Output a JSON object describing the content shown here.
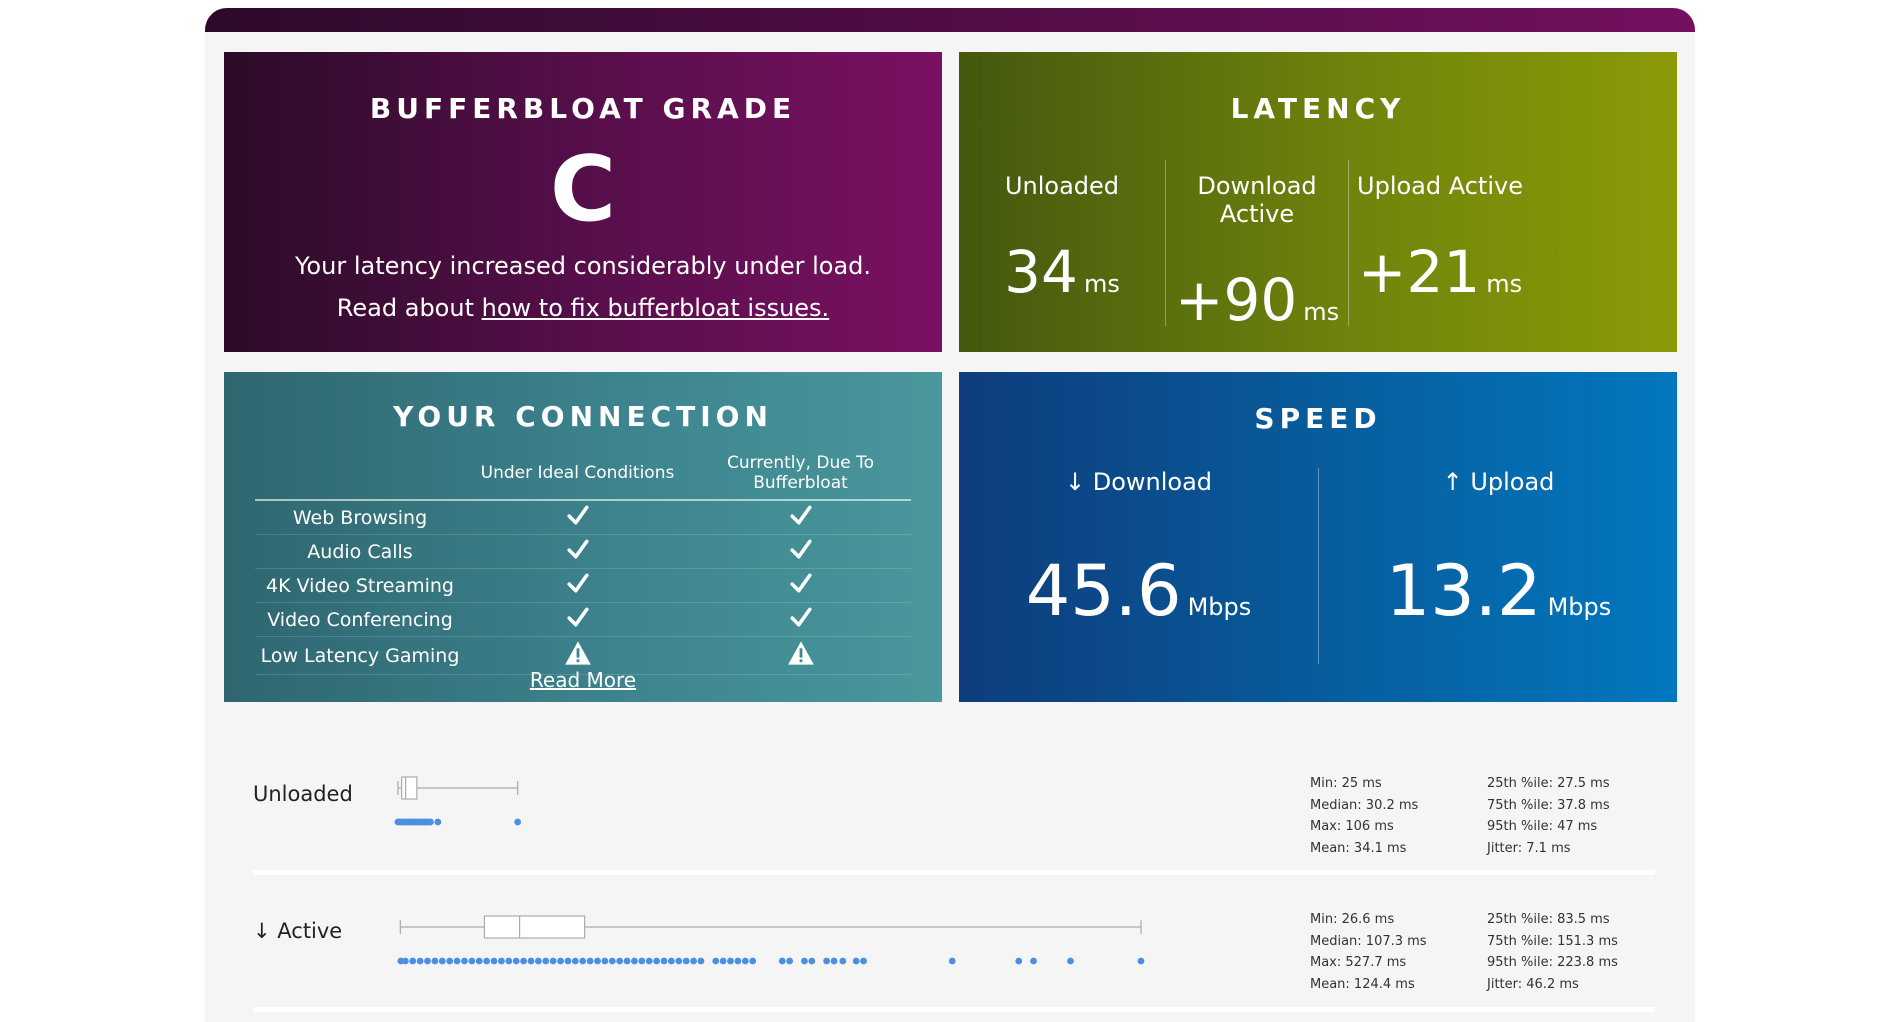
{
  "grade": {
    "title": "BUFFERBLOAT GRADE",
    "letter": "C",
    "message": "Your latency increased considerably under load.",
    "read_prefix": "Read about",
    "read_link": "how to fix bufferbloat issues."
  },
  "latency": {
    "title": "LATENCY",
    "columns": [
      {
        "label": "Unloaded",
        "value": "34",
        "unit": "ms"
      },
      {
        "label": "Download Active",
        "value": "+90",
        "unit": "ms"
      },
      {
        "label": "Upload Active",
        "value": "+21",
        "unit": "ms"
      }
    ]
  },
  "connection": {
    "title": "YOUR CONNECTION",
    "col_ideal": "Under Ideal Conditions",
    "col_current": "Currently, Due To Bufferbloat",
    "rows": [
      {
        "label": "Web Browsing",
        "ideal": "check-icon",
        "current": "check-icon"
      },
      {
        "label": "Audio Calls",
        "ideal": "check-icon",
        "current": "check-icon"
      },
      {
        "label": "4K Video Streaming",
        "ideal": "check-icon",
        "current": "check-icon"
      },
      {
        "label": "Video Conferencing",
        "ideal": "check-icon",
        "current": "check-icon"
      },
      {
        "label": "Low Latency Gaming",
        "ideal": "warning-icon",
        "current": "warning-icon"
      }
    ],
    "read_more": "Read More"
  },
  "speed": {
    "title": "SPEED",
    "download": {
      "label": "↓ Download",
      "value": "45.6",
      "unit": "Mbps"
    },
    "upload": {
      "label": "↑ Upload",
      "value": "13.2",
      "unit": "Mbps"
    }
  },
  "details": {
    "unloaded": {
      "label": "Unloaded",
      "stats_left": [
        "Min: 25 ms",
        "Median: 30.2 ms",
        "Max: 106 ms",
        "Mean: 34.1 ms"
      ],
      "stats_right": [
        "25th %ile: 27.5 ms",
        "75th %ile: 37.8 ms",
        "95th %ile: 47 ms",
        "Jitter: 7.1 ms"
      ]
    },
    "active": {
      "label": "↓ Active",
      "stats_left": [
        "Min: 26.6 ms",
        "Median: 107.3 ms",
        "Max: 527.7 ms",
        "Mean: 124.4 ms"
      ],
      "stats_right": [
        "25th %ile: 83.5 ms",
        "75th %ile: 151.3 ms",
        "95th %ile: 223.8 ms",
        "Jitter: 46.2 ms"
      ]
    }
  },
  "chart_data": {
    "type": "boxplot",
    "axis_min_ms": 0,
    "axis_max_ms": 527.7,
    "series": [
      {
        "name": "Unloaded",
        "min": 25,
        "q1": 27.5,
        "median": 30.2,
        "q3": 37.8,
        "max": 106,
        "points": [
          25,
          26,
          27,
          28,
          29,
          30,
          31,
          32,
          33,
          34,
          35,
          36,
          37,
          38,
          39,
          40,
          41,
          42,
          43,
          44,
          45,
          46,
          47,
          52,
          106
        ]
      },
      {
        "name": "↓ Active",
        "min": 26.6,
        "q1": 83.5,
        "median": 107.3,
        "q3": 151.3,
        "max": 527.7,
        "points": [
          27,
          30,
          35,
          40,
          45,
          50,
          55,
          60,
          65,
          70,
          75,
          80,
          85,
          90,
          95,
          100,
          105,
          110,
          115,
          120,
          125,
          130,
          135,
          140,
          145,
          150,
          155,
          160,
          165,
          170,
          175,
          180,
          185,
          190,
          195,
          200,
          205,
          210,
          215,
          220,
          225,
          230,
          240,
          245,
          250,
          255,
          260,
          265,
          285,
          290,
          300,
          305,
          315,
          320,
          326,
          335,
          340,
          400,
          445,
          455,
          480,
          527.7
        ]
      }
    ],
    "stroke": "#aaaaaa",
    "point_color": "#4a8fe0"
  }
}
